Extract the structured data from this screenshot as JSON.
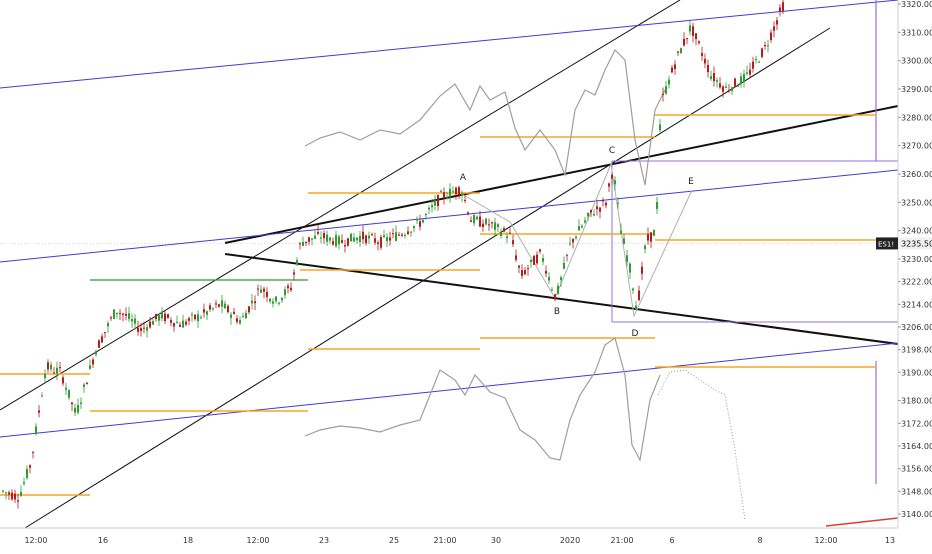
{
  "chart_data": {
    "type": "candlestick",
    "symbol_badge": "ES1!",
    "last_price_label": "3235.50",
    "last_price": 3235.5,
    "y_axis": {
      "min": 3136,
      "max": 3322,
      "ticks": [
        "3320.00",
        "3310.00",
        "3300.00",
        "3290.00",
        "3280.00",
        "3270.00",
        "3260.00",
        "3250.00",
        "3240.00",
        "3230.00",
        "3222.00",
        "3214.00",
        "3206.00",
        "3198.00",
        "3190.00",
        "3180.00",
        "3172.00",
        "3164.00",
        "3156.00",
        "3148.00",
        "3140.00"
      ]
    },
    "x_axis": {
      "ticks": [
        "12:00",
        "16",
        "18",
        "12:00",
        "23",
        "25",
        "21:00",
        "30",
        "2020",
        "21:00",
        "6",
        "8",
        "12:00",
        "13"
      ]
    },
    "wave_labels": [
      "A",
      "B",
      "C",
      "D",
      "E"
    ],
    "series": [
      {
        "name": "",
        "type": "candles",
        "color_up": "#26a69a",
        "color_down": "#b71c1c"
      },
      {
        "name": "",
        "type": "overlay-line",
        "color": "#9e9e9e"
      }
    ],
    "colors": {
      "up": "#2e9d32",
      "down": "#b71c1c",
      "channel": "#111111",
      "blue_line": "#3c3cd6",
      "orange_level": "#f5a623",
      "green_level": "#2e9d32",
      "purple_box": "#9370db",
      "overlay": "#9e9e9e",
      "red_line": "#e53935"
    }
  }
}
